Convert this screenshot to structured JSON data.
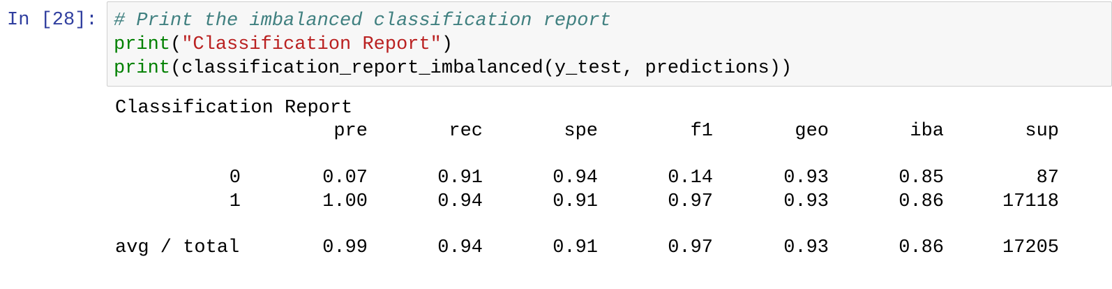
{
  "prompt": "In [28]:",
  "code": {
    "lines": [
      [
        {
          "text": "# Print the imbalanced classification report",
          "kind": "comment"
        }
      ],
      [
        {
          "text": "print",
          "kind": "builtin"
        },
        {
          "text": "(",
          "kind": "plain"
        },
        {
          "text": "\"Classification Report\"",
          "kind": "string"
        },
        {
          "text": ")",
          "kind": "plain"
        }
      ],
      [
        {
          "text": "print",
          "kind": "builtin"
        },
        {
          "text": "(classification_report_imbalanced(y_test, predictions))",
          "kind": "plain"
        }
      ]
    ]
  },
  "output": {
    "title": "Classification Report",
    "columns": [
      "pre",
      "rec",
      "spe",
      "f1",
      "geo",
      "iba",
      "sup"
    ],
    "rows": [
      {
        "label": "0",
        "values": [
          "0.07",
          "0.91",
          "0.94",
          "0.14",
          "0.93",
          "0.85",
          "87"
        ]
      },
      {
        "label": "1",
        "values": [
          "1.00",
          "0.94",
          "0.91",
          "0.97",
          "0.93",
          "0.86",
          "17118"
        ]
      }
    ],
    "total": {
      "label": "avg / total",
      "values": [
        "0.99",
        "0.94",
        "0.91",
        "0.97",
        "0.93",
        "0.86",
        "17205"
      ]
    }
  }
}
